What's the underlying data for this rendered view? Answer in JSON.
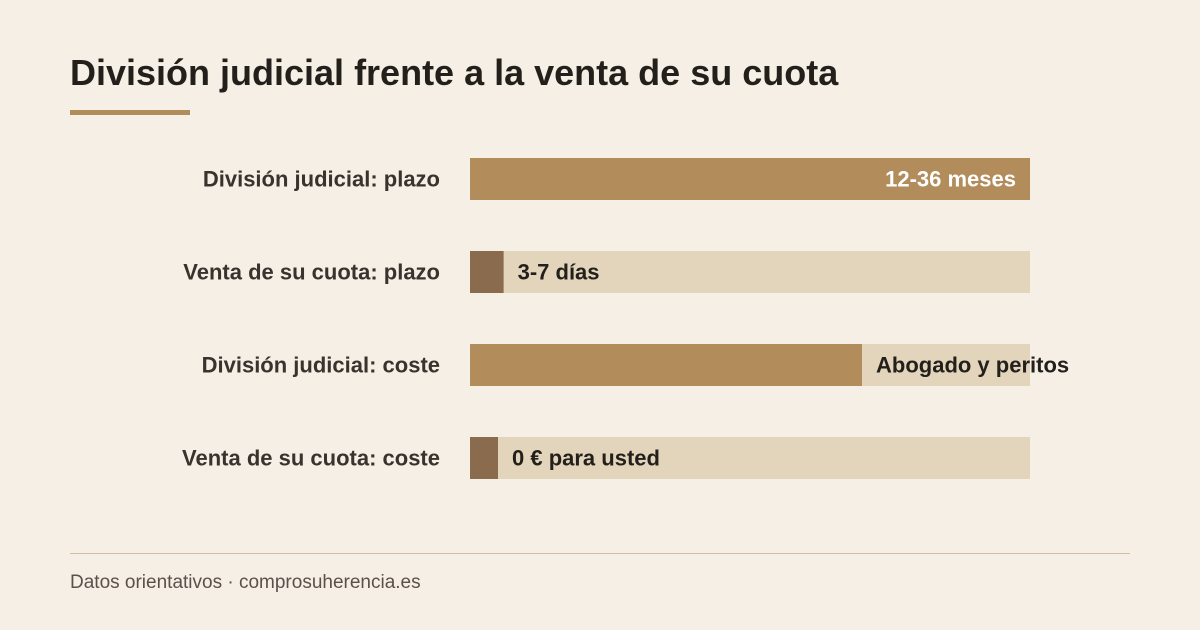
{
  "title": "División judicial frente a la venta de su cuota",
  "footer": {
    "source": "Datos orientativos",
    "separator": " · ",
    "site": "comprosuherencia.es"
  },
  "colors": {
    "background": "#f5efe6",
    "track": "#e3d4bc",
    "bar_judicial": "#b38c5b",
    "bar_venta": "#8b6b4e",
    "label_text": "#3a332d",
    "value_on_bar": "#ffffff",
    "value_off_bar": "#231f1b",
    "accent": "#b38c5b"
  },
  "chart_data": {
    "type": "bar",
    "orientation": "horizontal",
    "categories": [
      "División judicial: plazo",
      "Venta de su cuota: plazo",
      "División judicial: coste",
      "Venta de su cuota: coste"
    ],
    "values": [
      1.0,
      0.06,
      0.7,
      0.05
    ],
    "value_labels": [
      "12-36 meses",
      "3-7 días",
      "Abogado y peritos",
      "0 € para usted"
    ],
    "series_colors": [
      "bar_judicial",
      "bar_venta",
      "bar_judicial",
      "bar_venta"
    ],
    "value_label_inside": [
      true,
      false,
      false,
      false
    ],
    "xlim": [
      0,
      1
    ],
    "grid": false,
    "legend": "none"
  }
}
